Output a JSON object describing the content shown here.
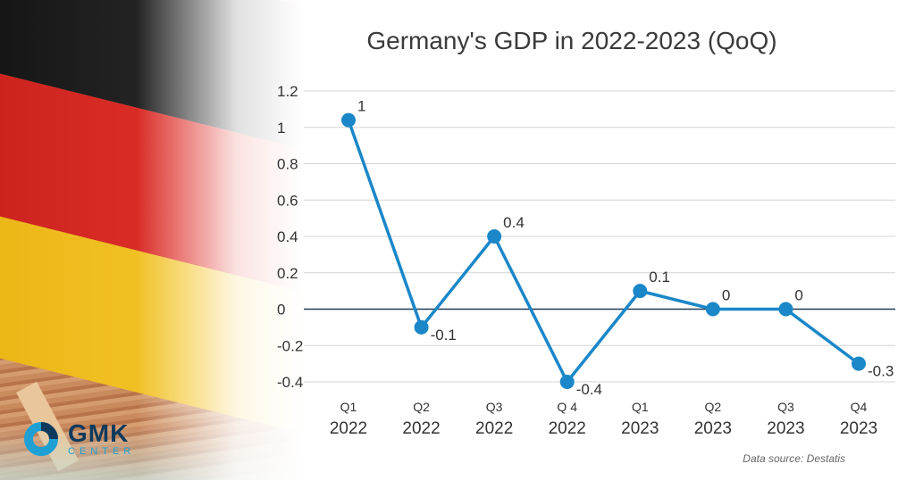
{
  "chart_data": {
    "type": "line",
    "title": "Germany's GDP in 2022-2023 (QoQ)",
    "categories": [
      {
        "q": "Q1",
        "year": "2022"
      },
      {
        "q": "Q2",
        "year": "2022"
      },
      {
        "q": "Q3",
        "year": "2022"
      },
      {
        "q": "Q 4",
        "year": "2022"
      },
      {
        "q": "Q1",
        "year": "2023"
      },
      {
        "q": "Q2",
        "year": "2023"
      },
      {
        "q": "Q3",
        "year": "2023"
      },
      {
        "q": "Q4",
        "year": "2023"
      }
    ],
    "values": [
      1.04,
      -0.1,
      0.4,
      -0.4,
      0.1,
      0,
      0,
      -0.3
    ],
    "data_labels": [
      "1",
      "-0.1",
      "0.4",
      "-0.4",
      "0.1",
      "0",
      "0",
      "-0.3"
    ],
    "yticks": [
      "1.2",
      "1",
      "0.8",
      "0.6",
      "0.4",
      "0.2",
      "0",
      "-0.2",
      "-0.4"
    ],
    "ylim": [
      -0.4,
      1.2
    ],
    "grid": true,
    "line_color": "#1a87c8",
    "zero_line_color": "#1f3b57",
    "grid_color": "#d4d4d4"
  },
  "source": "Data source: Destatis",
  "logo": {
    "name": "GMK",
    "sub": "CENTER",
    "colors": [
      "#1ea0d4",
      "#0d3a5c"
    ]
  }
}
